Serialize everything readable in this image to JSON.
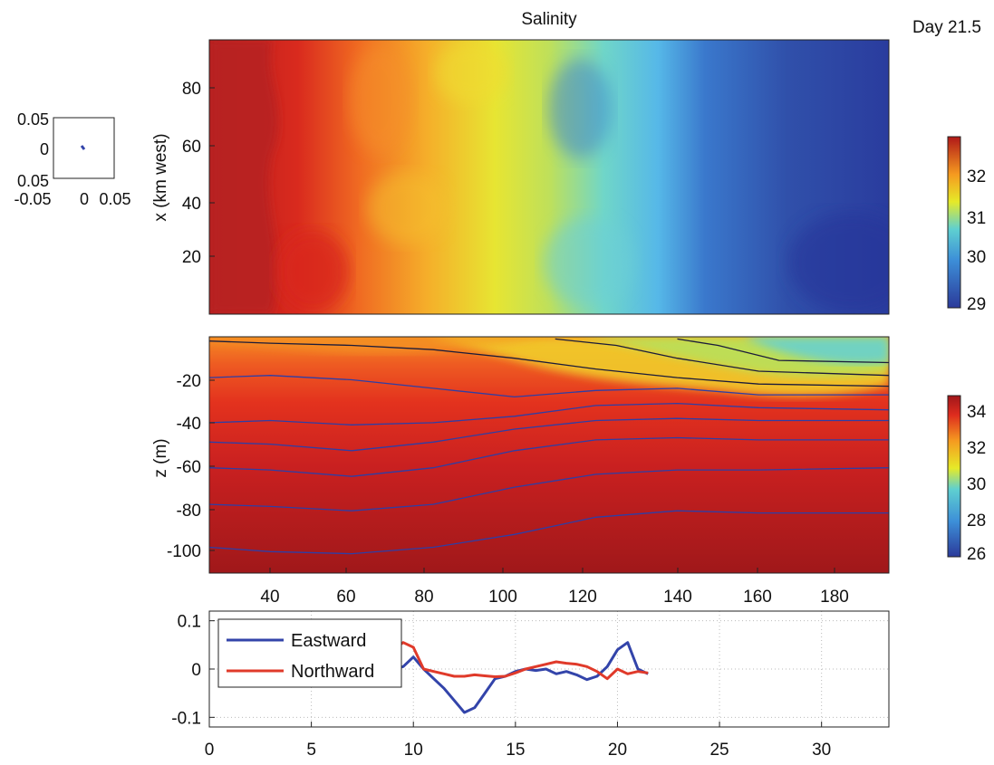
{
  "figure": {
    "title": "Salinity",
    "time_label": "Day 21.5"
  },
  "chart_data": [
    {
      "type": "heatmap",
      "panel": "surface salinity map",
      "ylabel": "x (km west)",
      "xlabel": "",
      "xlim": [
        25,
        192
      ],
      "ylim": [
        0,
        97
      ],
      "yticks": [
        20,
        40,
        60,
        80
      ],
      "grid": false,
      "colorbar": {
        "range": [
          29,
          32.9
        ],
        "ticks": [
          29,
          30,
          31,
          32
        ],
        "colormap": "jet"
      },
      "field_description_profile": {
        "x": [
          25,
          45,
          70,
          95,
          115,
          130,
          150,
          192
        ],
        "salinity": [
          32.9,
          32.6,
          31.9,
          31.2,
          30.4,
          29.8,
          29.5,
          29.2
        ]
      }
    },
    {
      "type": "heatmap",
      "panel": "salinity section",
      "ylabel": "z (m)",
      "xlabel": "",
      "xlim": [
        25,
        192
      ],
      "ylim": [
        -110,
        0
      ],
      "xticks": [
        40,
        60,
        80,
        100,
        120,
        140,
        160,
        180
      ],
      "yticks": [
        -100,
        -80,
        -60,
        -40,
        -20
      ],
      "grid": false,
      "colorbar": {
        "range": [
          26,
          35
        ],
        "ticks": [
          26,
          28,
          30,
          32,
          34
        ],
        "colormap": "jet"
      },
      "contours": [
        {
          "x": [
            25,
            40,
            60,
            80,
            100,
            120,
            140,
            160,
            192
          ],
          "z": [
            -98,
            -100,
            -101,
            -98,
            -92,
            -84,
            -81,
            -82,
            -82
          ]
        },
        {
          "x": [
            25,
            40,
            60,
            80,
            100,
            120,
            140,
            160,
            192
          ],
          "z": [
            -78,
            -79,
            -81,
            -78,
            -70,
            -64,
            -62,
            -62,
            -61
          ]
        },
        {
          "x": [
            25,
            40,
            60,
            80,
            100,
            120,
            140,
            160,
            192
          ],
          "z": [
            -61,
            -62,
            -65,
            -61,
            -53,
            -48,
            -47,
            -48,
            -48
          ]
        },
        {
          "x": [
            25,
            40,
            60,
            80,
            100,
            120,
            140,
            160,
            192
          ],
          "z": [
            -49,
            -50,
            -53,
            -49,
            -43,
            -39,
            -38,
            -39,
            -39
          ]
        },
        {
          "x": [
            25,
            40,
            60,
            80,
            100,
            120,
            140,
            160,
            192
          ],
          "z": [
            -40,
            -39,
            -41,
            -40,
            -37,
            -32,
            -31,
            -33,
            -34
          ]
        },
        {
          "x": [
            25,
            40,
            60,
            80,
            100,
            120,
            140,
            160,
            192
          ],
          "z": [
            -19,
            -18,
            -20,
            -24,
            -28,
            -25,
            -24,
            -27,
            -27
          ]
        },
        {
          "x": [
            25,
            40,
            60,
            80,
            100,
            120,
            140,
            160,
            192
          ],
          "z": [
            -2,
            -3,
            -4,
            -6,
            -10,
            -15,
            -19,
            -22,
            -23
          ]
        },
        {
          "x": [
            110,
            125,
            140,
            160,
            192
          ],
          "z": [
            -1,
            -4,
            -10,
            -16,
            -18
          ]
        },
        {
          "x": [
            140,
            150,
            165,
            192
          ],
          "z": [
            -1,
            -4,
            -11,
            -12
          ]
        }
      ]
    },
    {
      "type": "line",
      "panel": "currents",
      "xlim": [
        0,
        33.3
      ],
      "ylim": [
        -0.12,
        0.12
      ],
      "xticks": [
        0,
        5,
        10,
        15,
        20,
        25,
        30
      ],
      "yticks": [
        -0.1,
        0,
        0.1
      ],
      "grid": true,
      "legend": "top-left",
      "x": [
        9.0,
        9.5,
        10.0,
        10.5,
        11.0,
        11.5,
        12.0,
        12.5,
        13.0,
        13.5,
        14.0,
        14.5,
        15.0,
        15.5,
        16.0,
        16.5,
        17.0,
        17.5,
        18.0,
        18.5,
        19.0,
        19.5,
        20.0,
        20.5,
        21.0,
        21.5
      ],
      "series": [
        {
          "name": "Eastward",
          "color": "#3344aa",
          "values": [
            0.0,
            0.005,
            0.025,
            0.0,
            -0.02,
            -0.04,
            -0.065,
            -0.09,
            -0.08,
            -0.05,
            -0.02,
            -0.015,
            -0.005,
            0.0,
            -0.003,
            0.0,
            -0.01,
            -0.005,
            -0.012,
            -0.022,
            -0.015,
            0.005,
            0.04,
            0.055,
            0.0,
            -0.01
          ]
        },
        {
          "name": "Northward",
          "color": "#e03a2a",
          "values": [
            0.04,
            0.055,
            0.045,
            0.0,
            -0.005,
            -0.01,
            -0.015,
            -0.015,
            -0.012,
            -0.014,
            -0.016,
            -0.015,
            -0.008,
            0.0,
            0.005,
            0.01,
            0.015,
            0.012,
            0.01,
            0.005,
            -0.005,
            -0.02,
            0.0,
            -0.01,
            -0.005,
            -0.008
          ]
        }
      ]
    },
    {
      "type": "scatter",
      "panel": "inset",
      "xlim": [
        -0.05,
        0.05
      ],
      "ylim": [
        -0.05,
        0.05
      ],
      "xticks": [
        "-0.05",
        "0",
        "0.05"
      ],
      "yticks": [
        "0.05",
        "0",
        "0.05"
      ],
      "points": [
        {
          "x": 0.002,
          "y": 0.004
        },
        {
          "x": 0.006,
          "y": 0.001
        }
      ]
    }
  ]
}
